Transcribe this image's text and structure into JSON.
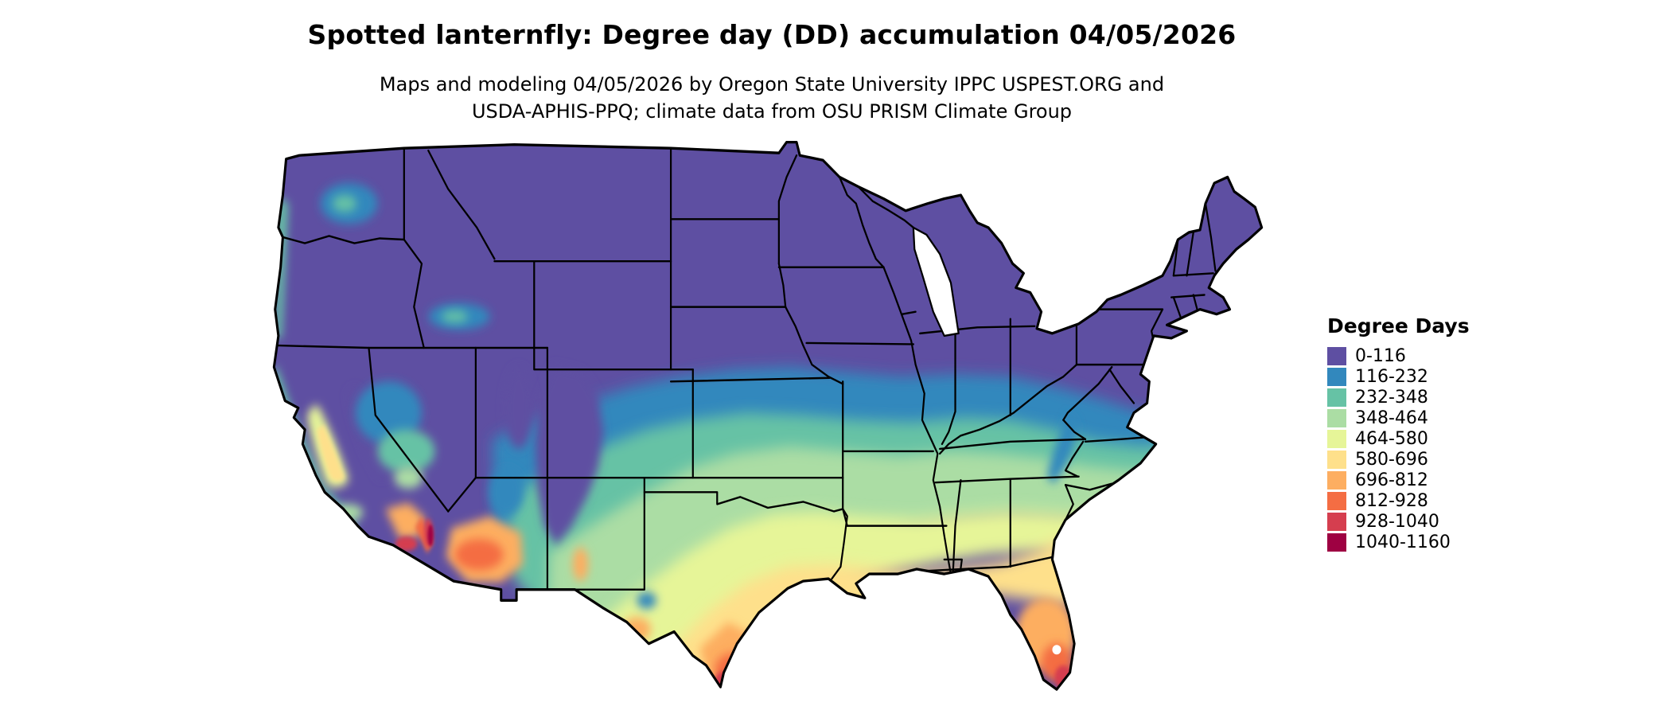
{
  "header": {
    "title": "Spotted lanternfly: Degree day (DD) accumulation 04/05/2026",
    "subtitle_line1": "Maps and modeling 04/05/2026 by Oregon State University IPPC USPEST.ORG and",
    "subtitle_line2": "USDA-APHIS-PPQ; climate data from OSU PRISM Climate Group"
  },
  "legend": {
    "title": "Degree Days",
    "items": [
      {
        "label": "0-116",
        "color": "#5e4fa2"
      },
      {
        "label": "116-232",
        "color": "#3288bd"
      },
      {
        "label": "232-348",
        "color": "#66c2a5"
      },
      {
        "label": "348-464",
        "color": "#abdda4"
      },
      {
        "label": "464-580",
        "color": "#e6f598"
      },
      {
        "label": "580-696",
        "color": "#fee08b"
      },
      {
        "label": "696-812",
        "color": "#fdae61"
      },
      {
        "label": "812-928",
        "color": "#f46d43"
      },
      {
        "label": "928-1040",
        "color": "#d53e4f"
      },
      {
        "label": "1040-1160",
        "color": "#9e0142"
      }
    ]
  },
  "map": {
    "region": "Contiguous United States"
  },
  "chart_data": {
    "type": "heatmap",
    "title": "Spotted lanternfly: Degree day (DD) accumulation 04/05/2026",
    "region": "Contiguous United States",
    "variable": "Degree day (DD) accumulation",
    "date": "04/05/2026",
    "legend_title": "Degree Days",
    "legend_position": "right",
    "bins": [
      "0-116",
      "116-232",
      "232-348",
      "348-464",
      "464-580",
      "580-696",
      "696-812",
      "812-928",
      "928-1040",
      "1040-1160"
    ],
    "bin_colors": [
      "#5e4fa2",
      "#3288bd",
      "#66c2a5",
      "#abdda4",
      "#e6f598",
      "#fee08b",
      "#fdae61",
      "#f46d43",
      "#d53e4f",
      "#9e0142"
    ]
  }
}
